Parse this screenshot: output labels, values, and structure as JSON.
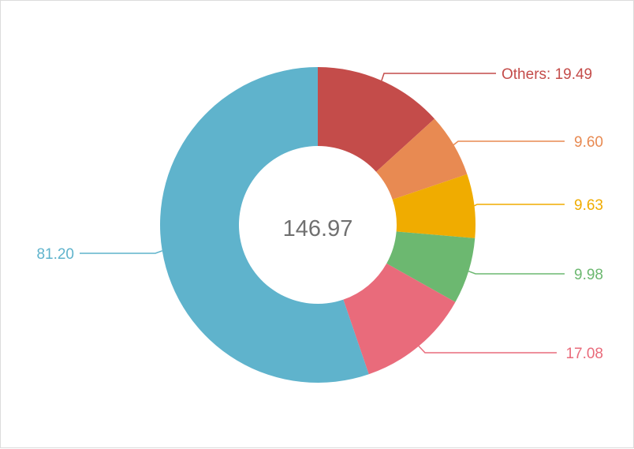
{
  "chart_data": {
    "type": "pie",
    "variant": "donut",
    "total": "146.97",
    "start_angle_deg": 0,
    "direction": "clockwise",
    "slices": [
      {
        "label": "Others: 19.49",
        "value": 19.49,
        "color": "#c44c4a"
      },
      {
        "label": "9.60",
        "value": 9.6,
        "color": "#e88a52"
      },
      {
        "label": "9.63",
        "value": 9.63,
        "color": "#f0ac00"
      },
      {
        "label": "9.98",
        "value": 9.98,
        "color": "#6cb870"
      },
      {
        "label": "17.08",
        "value": 17.08,
        "color": "#e96b7b"
      },
      {
        "label": "81.20",
        "value": 81.2,
        "color": "#5fb3cc"
      }
    ]
  }
}
